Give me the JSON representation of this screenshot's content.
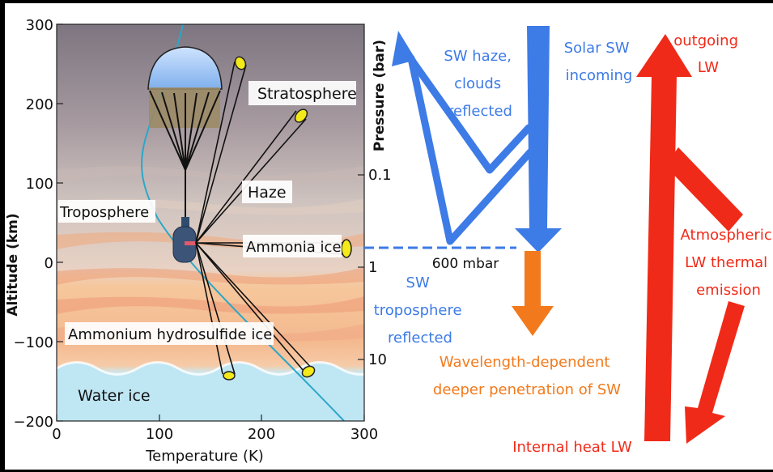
{
  "colors": {
    "frame": "#000000",
    "panel_bg": "#ffffff",
    "sw_blue": "#3d7be6",
    "lw_red": "#f02a18",
    "orange": "#f27a1c",
    "haze_gray": "#8a8290",
    "trop_band": "#f5c9a0",
    "water_ice": "#bfe6f3",
    "temp_profile": "#2aa7c9"
  },
  "left_panel": {
    "y_axis_label": "Altitude (km)",
    "x_axis_label": "Temperature (K)",
    "y_ticks": [
      "300",
      "200",
      "100",
      "0",
      "−100",
      "−200"
    ],
    "x_ticks": [
      "0",
      "100",
      "200",
      "300"
    ],
    "layers": {
      "stratosphere": "Stratosphere",
      "haze": "Haze",
      "troposphere": "Troposphere",
      "ammonia_ice": "Ammonia ice",
      "ammonium_hydrosulfide_ice": "Ammonium hydrosulfide ice",
      "water_ice": "Water ice"
    }
  },
  "pressure_axis": {
    "label": "Pressure (bar)",
    "ticks": [
      "0.1",
      "1",
      "10"
    ]
  },
  "right_panel": {
    "sw_haze": [
      "SW haze,",
      "clouds",
      "reflected"
    ],
    "solar_sw": [
      "Solar SW",
      "incoming"
    ],
    "mbar_600": "600 mbar",
    "sw_troposphere": [
      "SW",
      "troposphere",
      "reflected"
    ],
    "wavelength": [
      "Wavelength-dependent",
      "deeper penetration of SW"
    ],
    "outgoing_lw": [
      "outgoing",
      "LW"
    ],
    "atm_lw": [
      "Atmospheric",
      "LW thermal",
      "emission"
    ],
    "internal_heat": "Internal heat LW"
  }
}
